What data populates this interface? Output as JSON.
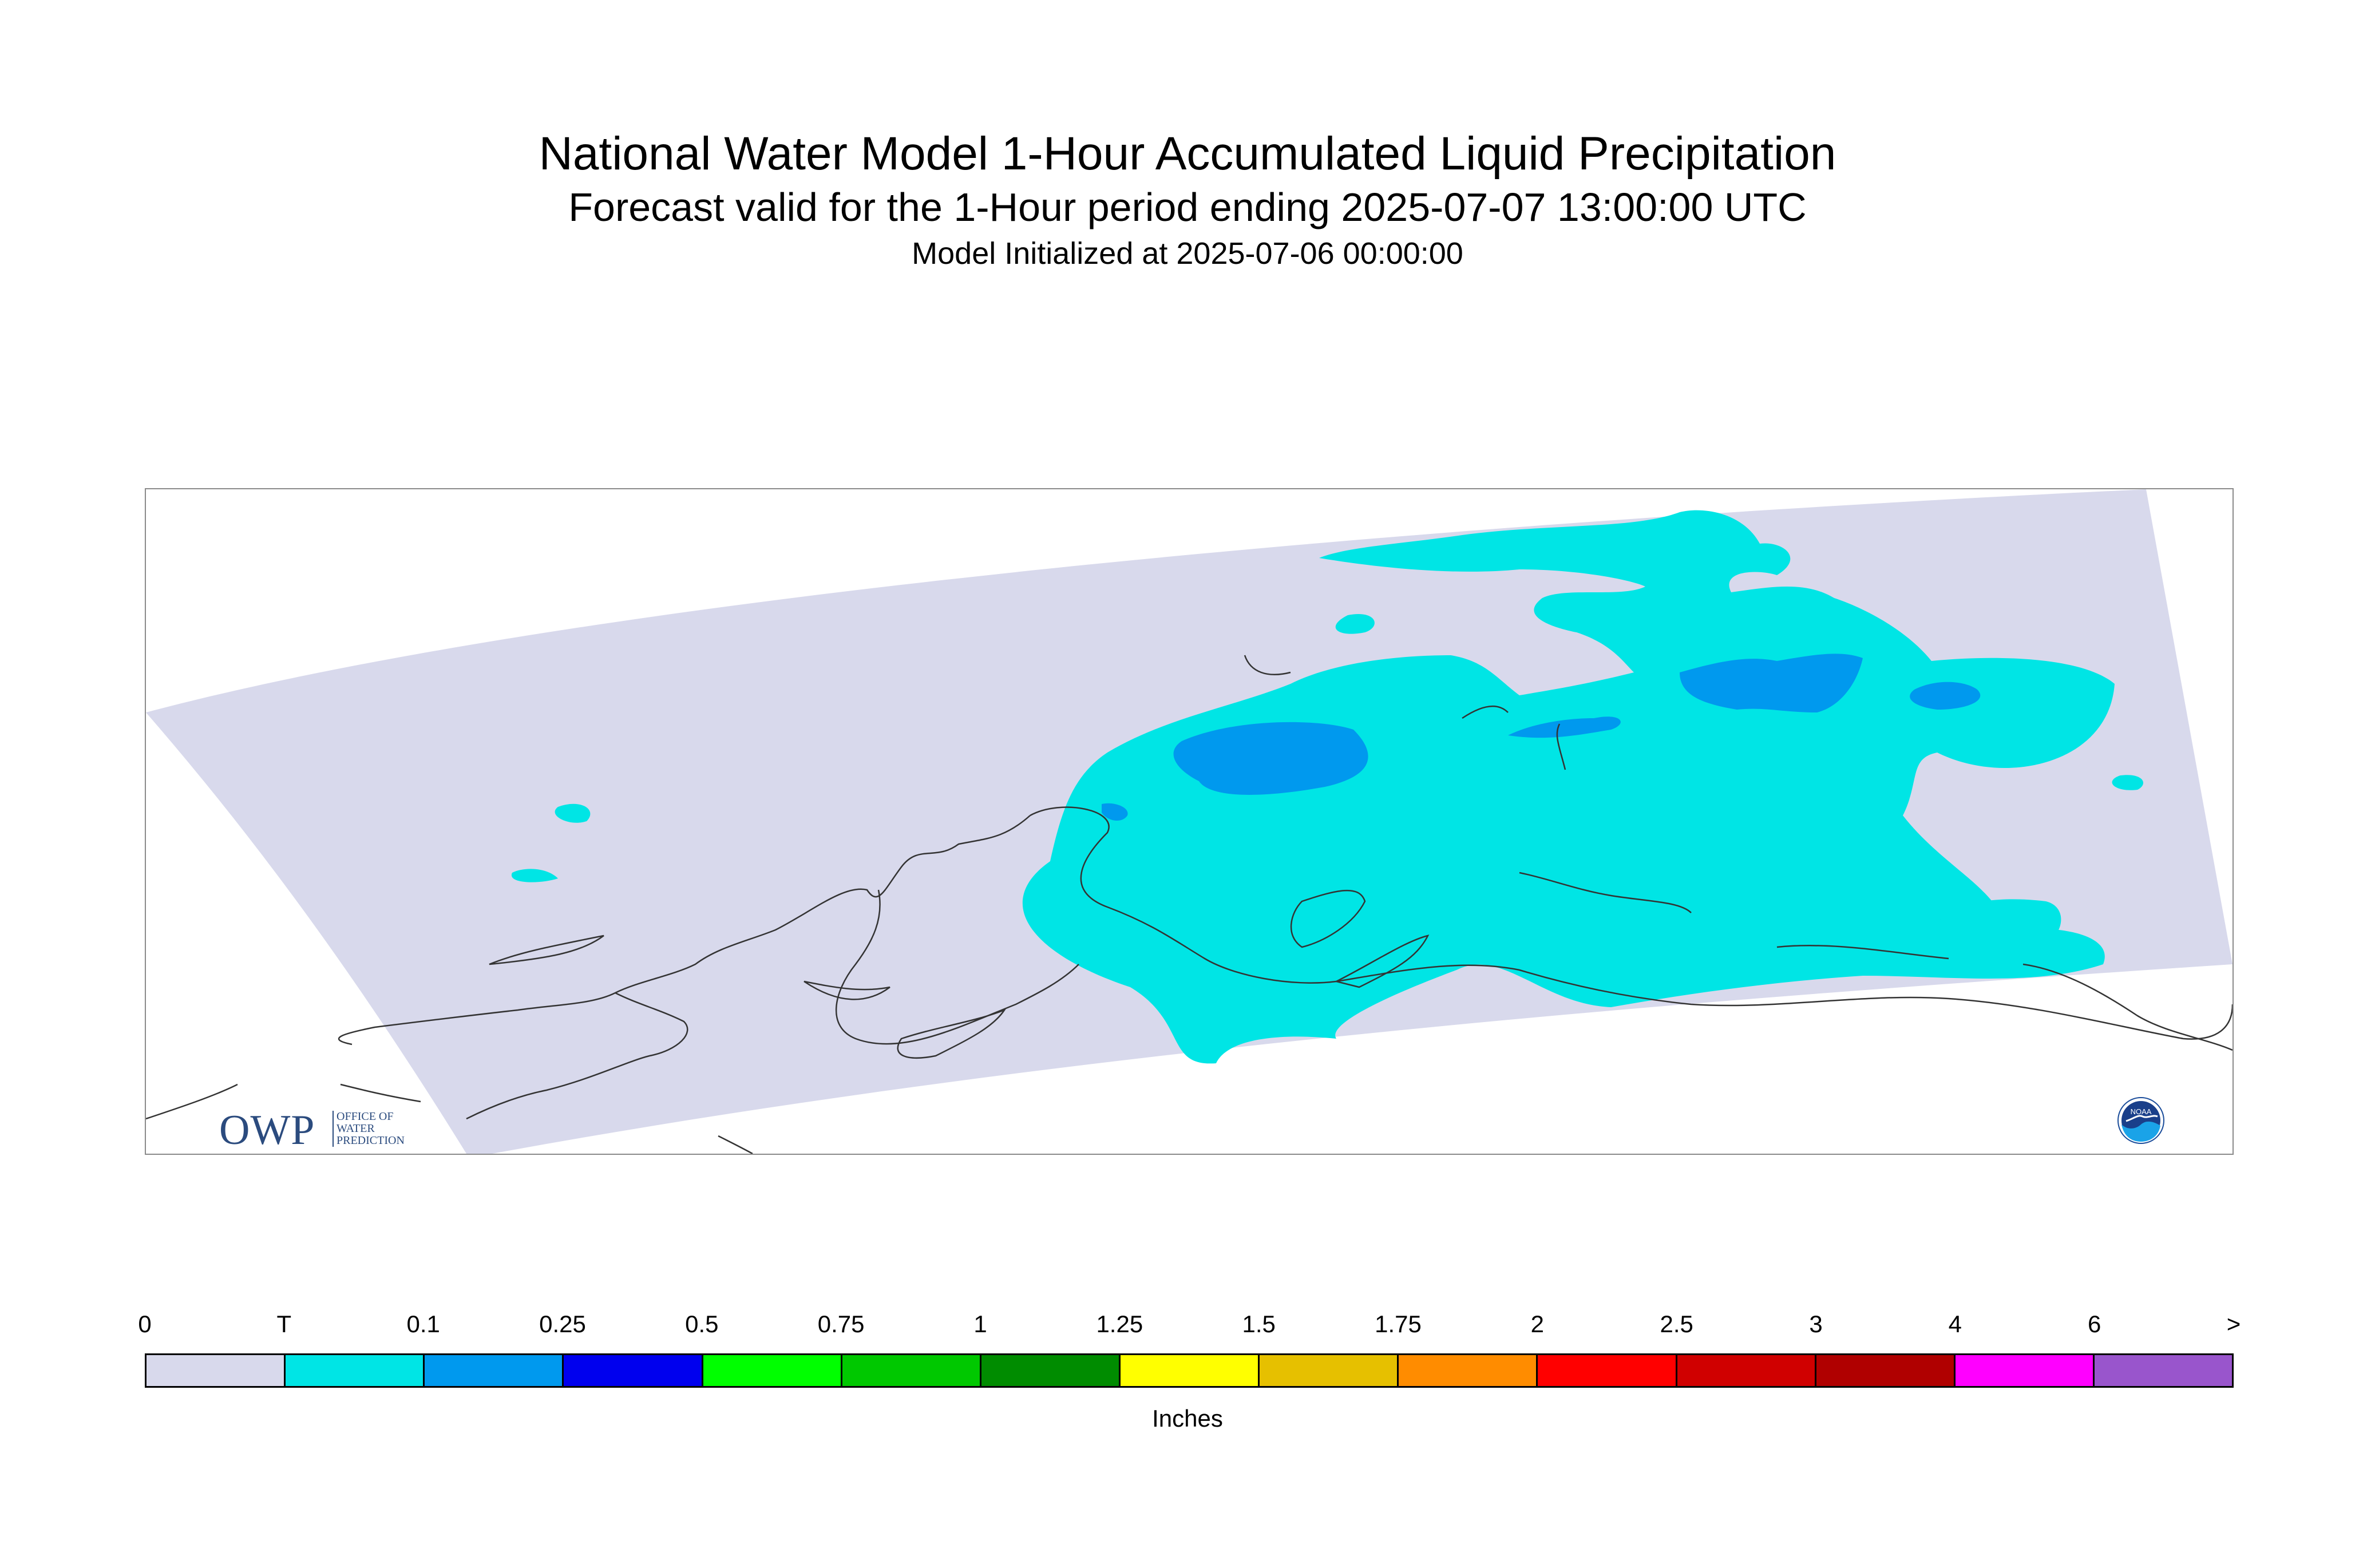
{
  "title": "National Water Model 1-Hour Accumulated Liquid Precipitation",
  "subtitle": "Forecast valid for the 1-Hour period ending 2025-07-07 13:00:00 UTC",
  "init_line": "Model Initialized at 2025-07-06 00:00:00",
  "logos": {
    "owp_big": "OWP",
    "owp_small": [
      "OFFICE OF",
      "WATER",
      "PREDICTION"
    ],
    "noaa_text": "NOAA"
  },
  "colors": {
    "domain_fill": "#d8d9ec",
    "trace_fill": "#00e5e5",
    "light_blue_fill": "#0099ee",
    "coastline": "#333333"
  },
  "legend": {
    "units": "Inches",
    "labels": [
      "0",
      "T",
      "0.1",
      "0.25",
      "0.5",
      "0.75",
      "1",
      "1.25",
      "1.5",
      "1.75",
      "2",
      "2.5",
      "3",
      "4",
      "6",
      ">"
    ],
    "colors": [
      "#d8d9ec",
      "#00e5e5",
      "#0099ee",
      "#0000ee",
      "#00ff00",
      "#00c800",
      "#008c00",
      "#ffff00",
      "#e6c000",
      "#ff8c00",
      "#ff0000",
      "#d00000",
      "#b00000",
      "#ff00ff",
      "#9955cc"
    ]
  }
}
